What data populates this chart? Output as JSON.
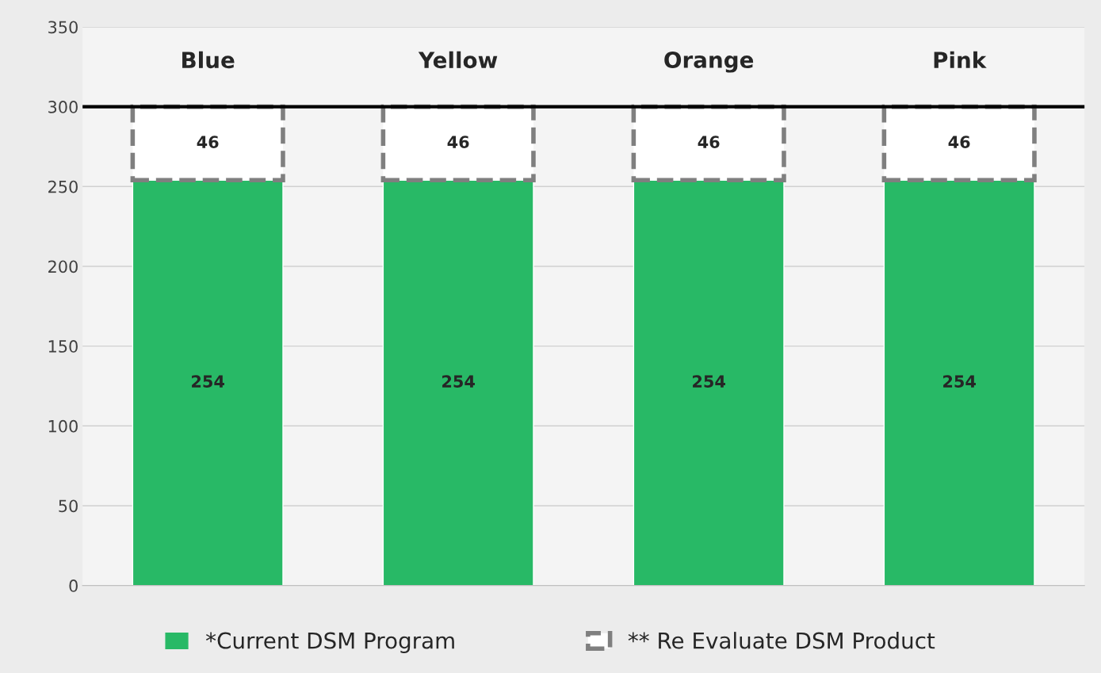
{
  "chart_data": {
    "type": "bar",
    "stacked": true,
    "categories": [
      "Blue",
      "Yellow",
      "Orange",
      "Pink"
    ],
    "series": [
      {
        "name": "*Current DSM Program",
        "color": "#28b966",
        "values": [
          254,
          254,
          254,
          254
        ]
      },
      {
        "name": "** Re Evaluate DSM Product",
        "color": "#7f7f7f",
        "line_style": "dashed",
        "values": [
          46,
          46,
          46,
          46
        ]
      }
    ],
    "ylim": [
      0,
      350
    ],
    "yticks": [
      0,
      50,
      100,
      150,
      200,
      250,
      300,
      350
    ],
    "ref_lines": [
      {
        "axis": "y",
        "value": 300,
        "color": "#000000"
      }
    ],
    "grid": "y",
    "data_labels": true,
    "legend": "bottom"
  }
}
